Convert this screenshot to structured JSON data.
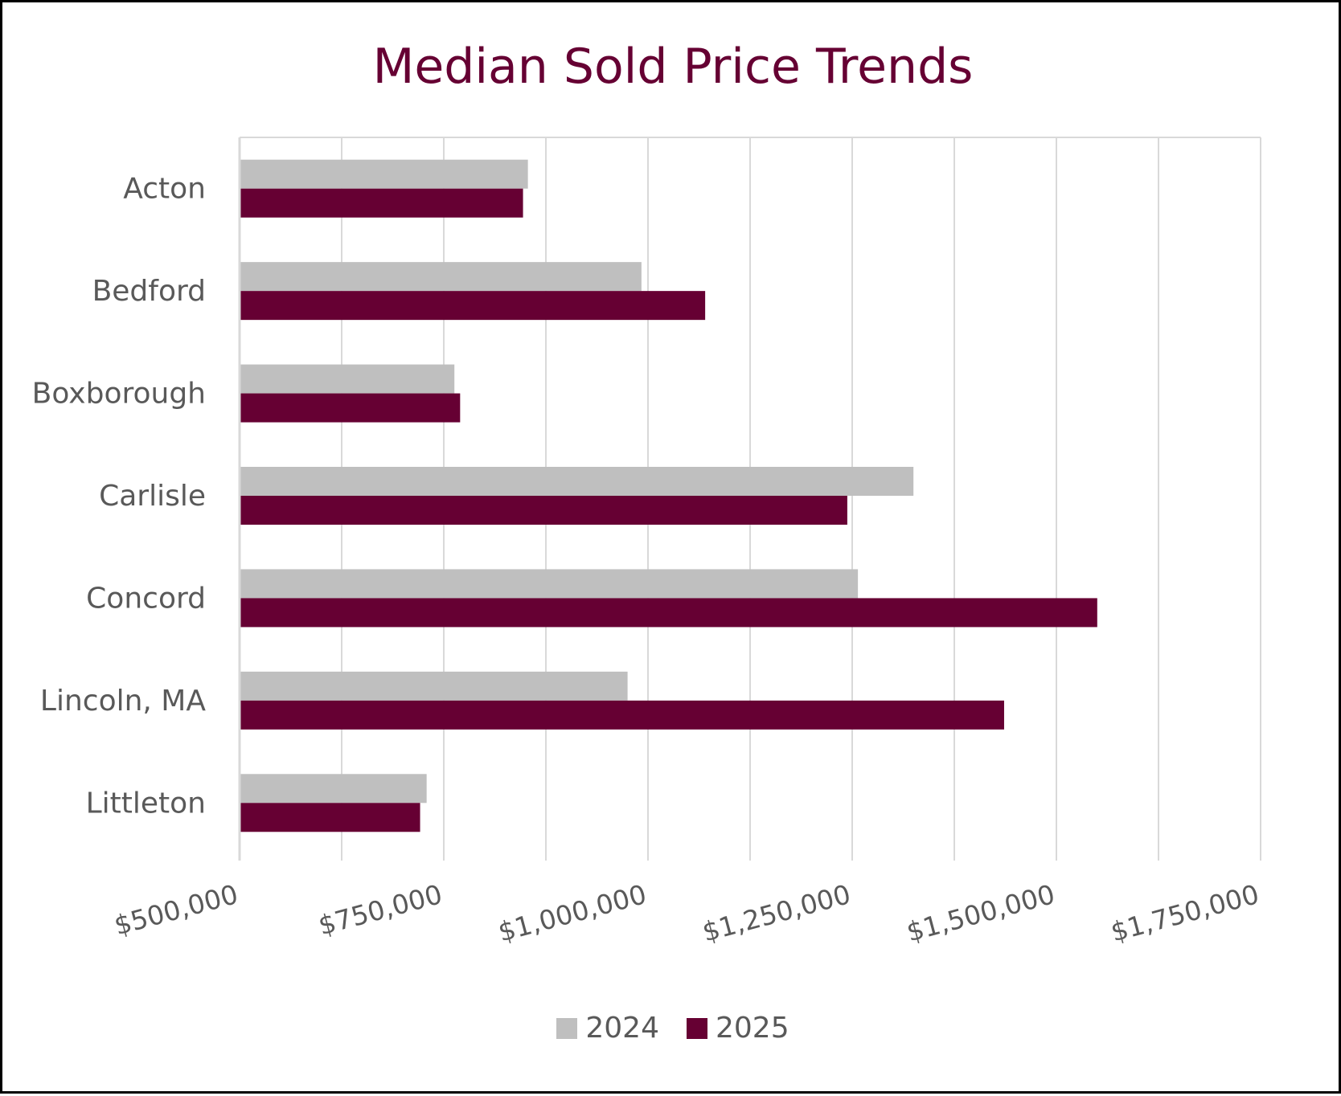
{
  "chart_data": {
    "type": "bar",
    "orientation": "horizontal",
    "title": "Median Sold Price Trends",
    "xlabel": "",
    "ylabel": "",
    "categories": [
      "Acton",
      "Bedford",
      "Boxborough",
      "Carlisle",
      "Concord",
      "Lincoln, MA",
      "Littleton"
    ],
    "series": [
      {
        "name": "2024",
        "color": "#BFBFBF",
        "values": [
          853000,
          992000,
          763000,
          1325000,
          1257000,
          975000,
          729000
        ]
      },
      {
        "name": "2025",
        "color": "#660033",
        "values": [
          847000,
          1070000,
          770000,
          1244000,
          1550000,
          1436000,
          721000
        ]
      }
    ],
    "xlim": [
      500000,
      1750000
    ],
    "xticks": [
      500000,
      750000,
      1000000,
      1250000,
      1500000,
      1750000
    ],
    "xtick_labels": [
      "$500,000",
      "$750,000",
      "$1,000,000",
      "$1,250,000",
      "$1,500,000",
      "$1,750,000"
    ],
    "grid": true,
    "legend_position": "bottom"
  }
}
